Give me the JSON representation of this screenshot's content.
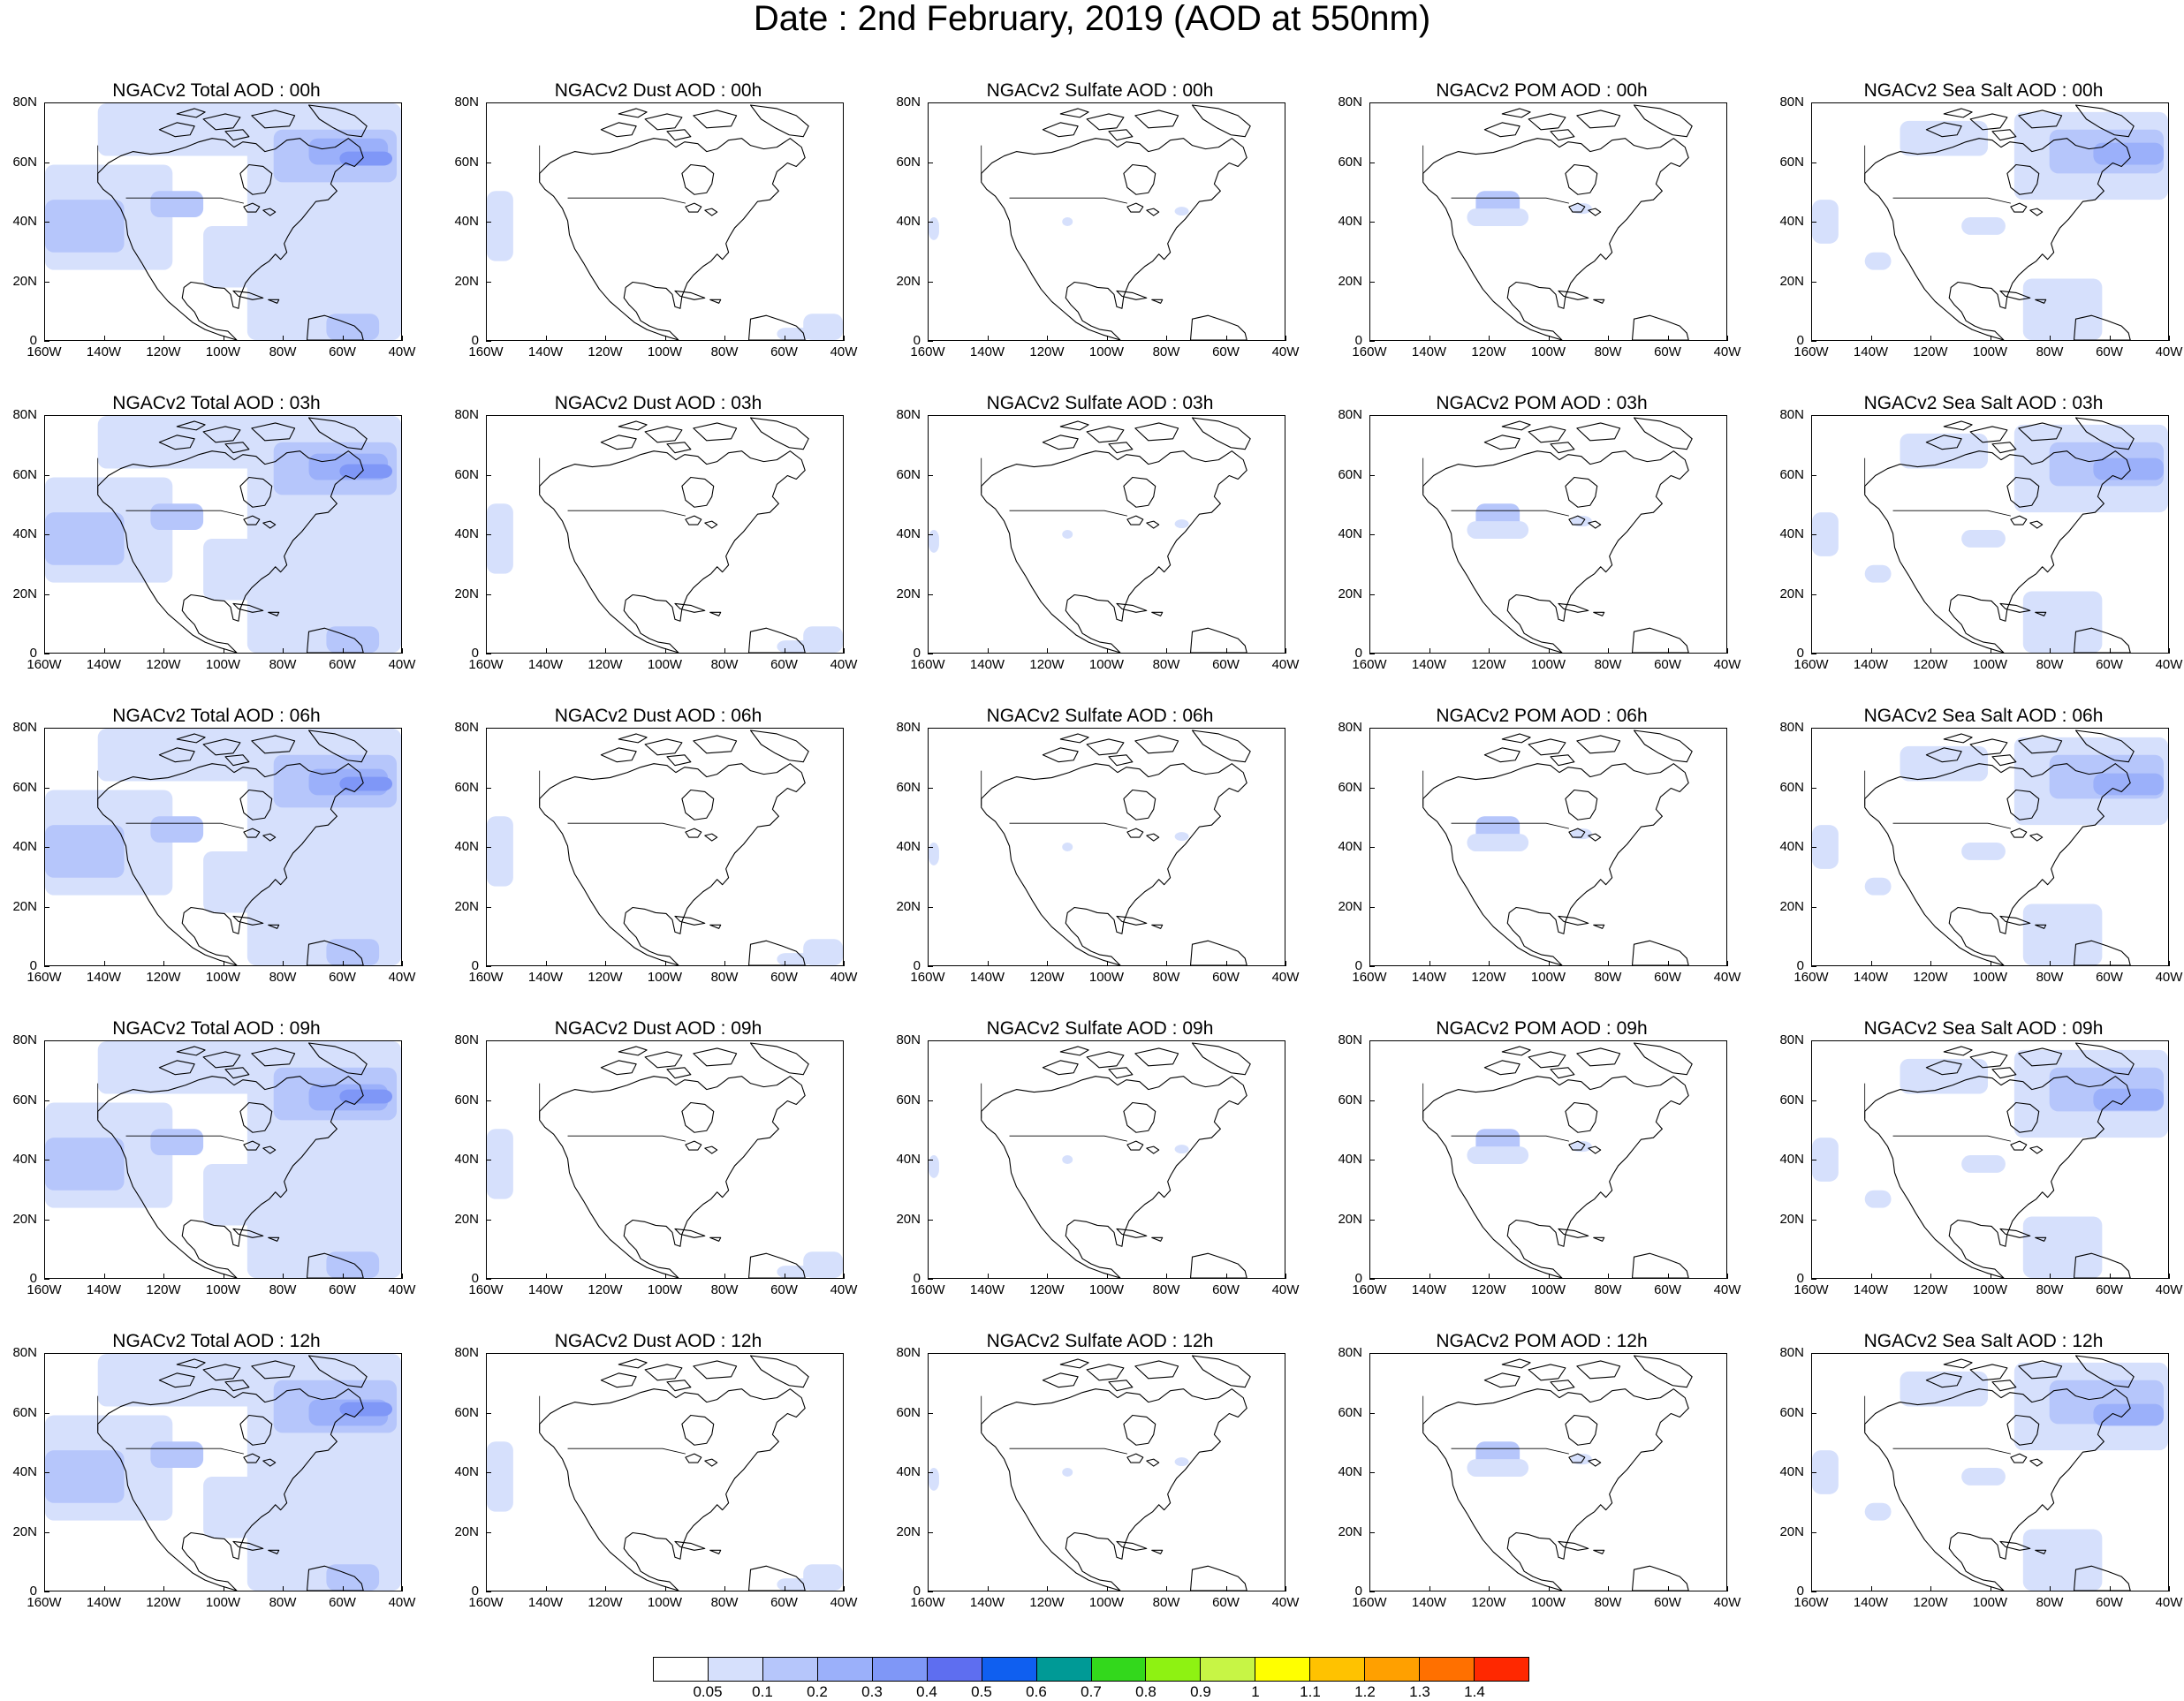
{
  "title": "Date : 2nd February, 2019 (AOD at 550nm)",
  "y_ticks": [
    "80N",
    "60N",
    "40N",
    "20N",
    "0"
  ],
  "x_ticks": [
    "160W",
    "140W",
    "120W",
    "100W",
    "80W",
    "60W",
    "40W"
  ],
  "panels": [
    [
      "NGACv2 Total AOD : 00h",
      "NGACv2 Dust AOD : 00h",
      "NGACv2 Sulfate AOD : 00h",
      "NGACv2 POM AOD : 00h",
      "NGACv2 Sea Salt AOD : 00h"
    ],
    [
      "NGACv2 Total AOD : 03h",
      "NGACv2 Dust AOD : 03h",
      "NGACv2 Sulfate AOD : 03h",
      "NGACv2 POM AOD : 03h",
      "NGACv2 Sea Salt AOD : 03h"
    ],
    [
      "NGACv2 Total AOD : 06h",
      "NGACv2 Dust AOD : 06h",
      "NGACv2 Sulfate AOD : 06h",
      "NGACv2 POM AOD : 06h",
      "NGACv2 Sea Salt AOD : 06h"
    ],
    [
      "NGACv2 Total AOD : 09h",
      "NGACv2 Dust AOD : 09h",
      "NGACv2 Sulfate AOD : 09h",
      "NGACv2 POM AOD : 09h",
      "NGACv2 Sea Salt  AOD : 09h"
    ],
    [
      "NGACv2 Total AOD  : 12h",
      "NGACv2 Dust AOD : 12h",
      "NGACv2 Sulfate AOD : 12h",
      "NGACv2 POM  AOD : 12h",
      "NGACv2 Sea Salt  AOD : 12h"
    ]
  ],
  "colorbar": {
    "labels": [
      "0.05",
      "0.1",
      "0.2",
      "0.3",
      "0.4",
      "0.5",
      "0.6",
      "0.7",
      "0.8",
      "0.9",
      "1",
      "1.1",
      "1.2",
      "1.3",
      "1.4"
    ],
    "colors": [
      "#ffffff",
      "#d6e0fc",
      "#b6c6fb",
      "#9bb0fa",
      "#7f97f7",
      "#5e6ef0",
      "#0f5ff0",
      "#009a96",
      "#33d81c",
      "#8ef212",
      "#c7f545",
      "#ffff00",
      "#ffc200",
      "#ffa000",
      "#ff7000",
      "#ff2800"
    ]
  }
}
